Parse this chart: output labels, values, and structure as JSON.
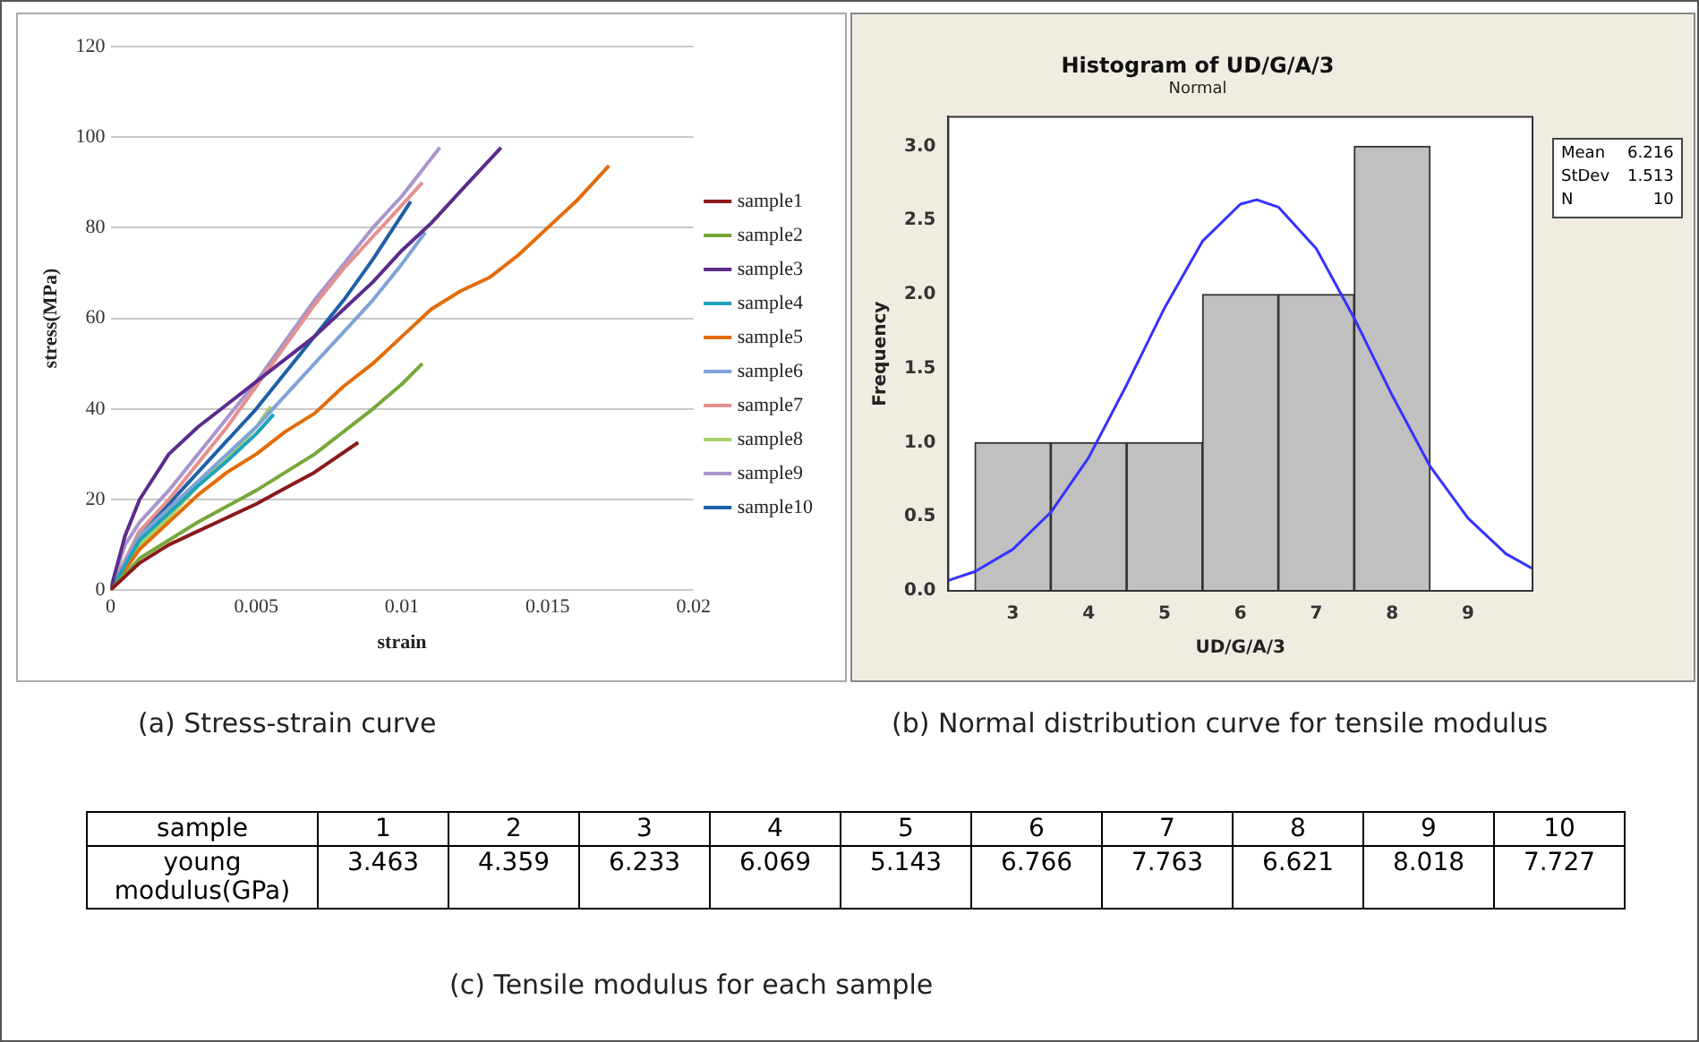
{
  "chart_data": [
    {
      "type": "line",
      "title": "(a) Stress-strain curve",
      "xlabel": "strain",
      "ylabel": "stress(MPa)",
      "xlim": [
        0,
        0.02
      ],
      "xticks": [
        0,
        0.005,
        0.01,
        0.015,
        0.02
      ],
      "ylim": [
        0,
        120
      ],
      "yticks": [
        0,
        20,
        40,
        60,
        80,
        100,
        120
      ],
      "grid": "y",
      "legend": "right",
      "marker": "none",
      "line_style": "solid",
      "series": [
        {
          "name": "sample1",
          "color": "#8b1a1a",
          "x": [
            0,
            0.001,
            0.002,
            0.003,
            0.004,
            0.005,
            0.006,
            0.007,
            0.0085
          ],
          "values": [
            0,
            6,
            10,
            13,
            16,
            19,
            22.5,
            26,
            32.6
          ]
        },
        {
          "name": "sample2",
          "color": "#77a83a",
          "x": [
            0,
            0.001,
            0.002,
            0.003,
            0.004,
            0.005,
            0.006,
            0.007,
            0.008,
            0.009,
            0.01,
            0.0107
          ],
          "values": [
            0,
            7,
            11,
            15,
            18.5,
            22,
            26,
            30,
            35,
            40,
            45.5,
            50
          ]
        },
        {
          "name": "sample3",
          "color": "#5b2c8a",
          "x": [
            0,
            0.0005,
            0.001,
            0.002,
            0.003,
            0.004,
            0.005,
            0.006,
            0.007,
            0.008,
            0.009,
            0.01,
            0.011,
            0.012,
            0.0134
          ],
          "values": [
            0,
            12,
            20,
            30,
            36,
            41,
            46,
            51,
            56,
            62,
            68,
            75,
            81,
            88,
            97.7
          ]
        },
        {
          "name": "sample4",
          "color": "#1ea3b8",
          "x": [
            0,
            0.001,
            0.002,
            0.003,
            0.004,
            0.005,
            0.0056
          ],
          "values": [
            0,
            11,
            17,
            23,
            28.5,
            34.5,
            38.8
          ]
        },
        {
          "name": "sample5",
          "color": "#e36c0a",
          "x": [
            0,
            0.001,
            0.002,
            0.003,
            0.004,
            0.005,
            0.006,
            0.007,
            0.008,
            0.009,
            0.01,
            0.011,
            0.012,
            0.013,
            0.014,
            0.015,
            0.016,
            0.0171
          ],
          "values": [
            0,
            9,
            15,
            21,
            26,
            30,
            35,
            39,
            45,
            50,
            56,
            62,
            66,
            69,
            74,
            80,
            86,
            93.7
          ]
        },
        {
          "name": "sample6",
          "color": "#7fa3d6",
          "x": [
            0,
            0.001,
            0.002,
            0.003,
            0.004,
            0.005,
            0.006,
            0.007,
            0.008,
            0.009,
            0.01,
            0.0108
          ],
          "values": [
            0,
            12,
            18,
            24,
            30,
            36,
            43,
            50,
            57,
            64,
            72,
            79
          ]
        },
        {
          "name": "sample7",
          "color": "#e69090",
          "x": [
            0,
            0.001,
            0.002,
            0.003,
            0.004,
            0.005,
            0.006,
            0.007,
            0.008,
            0.009,
            0.01,
            0.0107
          ],
          "values": [
            0,
            13,
            20,
            28,
            36,
            45,
            54,
            63,
            71,
            78,
            85,
            90
          ]
        },
        {
          "name": "sample8",
          "color": "#a6d06a",
          "x": [
            0,
            0.001,
            0.002,
            0.003,
            0.004,
            0.005,
            0.0055
          ],
          "values": [
            0,
            10,
            16,
            23,
            29,
            36,
            40.5
          ]
        },
        {
          "name": "sample9",
          "color": "#a995cc",
          "x": [
            0,
            0.0005,
            0.001,
            0.002,
            0.003,
            0.004,
            0.005,
            0.006,
            0.007,
            0.008,
            0.009,
            0.01,
            0.0113
          ],
          "values": [
            0,
            10,
            15,
            22,
            30,
            38,
            46,
            55,
            64,
            72,
            80,
            87,
            97.7
          ]
        },
        {
          "name": "sample10",
          "color": "#1f5fa8",
          "x": [
            0,
            0.001,
            0.002,
            0.003,
            0.004,
            0.005,
            0.006,
            0.007,
            0.008,
            0.009,
            0.0103
          ],
          "values": [
            0,
            13,
            19,
            26,
            33,
            40,
            48,
            56,
            64,
            73,
            85.8
          ]
        }
      ]
    },
    {
      "type": "histogram",
      "title": "Histogram of UD/G/A/3",
      "subtitle": "Normal",
      "xlabel": "UD/G/A/3",
      "ylabel": "Frequency",
      "bins": [
        2.5,
        3.5,
        4.5,
        5.5,
        6.5,
        7.5,
        8.5
      ],
      "values": [
        1,
        1,
        1,
        2,
        2,
        3
      ],
      "color": "#c0c0c0",
      "xlim": [
        2.15,
        9.85
      ],
      "xticks": [
        3,
        4,
        5,
        6,
        7,
        8,
        9
      ],
      "ylim": [
        0,
        3.2
      ],
      "yticks": [
        {
          "value": 0,
          "label": "0.0"
        },
        {
          "value": 0.5,
          "label": "0.5"
        },
        {
          "value": 1,
          "label": "1.0"
        },
        {
          "value": 1.5,
          "label": "1.5"
        },
        {
          "value": 2,
          "label": "2.0"
        },
        {
          "value": 2.5,
          "label": "2.5"
        },
        {
          "value": 3,
          "label": "3.0"
        }
      ],
      "grid": false,
      "annotations": [
        "Mean 6.216",
        "StDev 1.513",
        "N 10",
        "(b) Normal distribution curve for tensile modulus"
      ],
      "series": [
        {
          "type": "line",
          "color": "#3333ff",
          "x": [
            2.15,
            2.5,
            3,
            3.5,
            4,
            4.5,
            5,
            5.5,
            6,
            6.216,
            6.5,
            7,
            7.5,
            8,
            8.5,
            9,
            9.5,
            9.85
          ],
          "values": [
            0.07,
            0.13,
            0.28,
            0.53,
            0.9,
            1.39,
            1.91,
            2.36,
            2.61,
            2.64,
            2.59,
            2.31,
            1.84,
            1.32,
            0.84,
            0.49,
            0.25,
            0.15
          ]
        }
      ]
    },
    {
      "type": "heatmap",
      "title": "(c) Tensile modulus for each sample",
      "xlabel": "sample",
      "categories": [
        "1",
        "2",
        "3",
        "4",
        "5",
        "6",
        "7",
        "8",
        "9",
        "10"
      ],
      "y_categories": [
        "young modulus(GPa)"
      ],
      "cells": [
        [
          3.463,
          4.359,
          6.233,
          6.069,
          5.143,
          6.766,
          7.763,
          6.621,
          8.018,
          7.727
        ]
      ],
      "data_labels": true
    }
  ]
}
